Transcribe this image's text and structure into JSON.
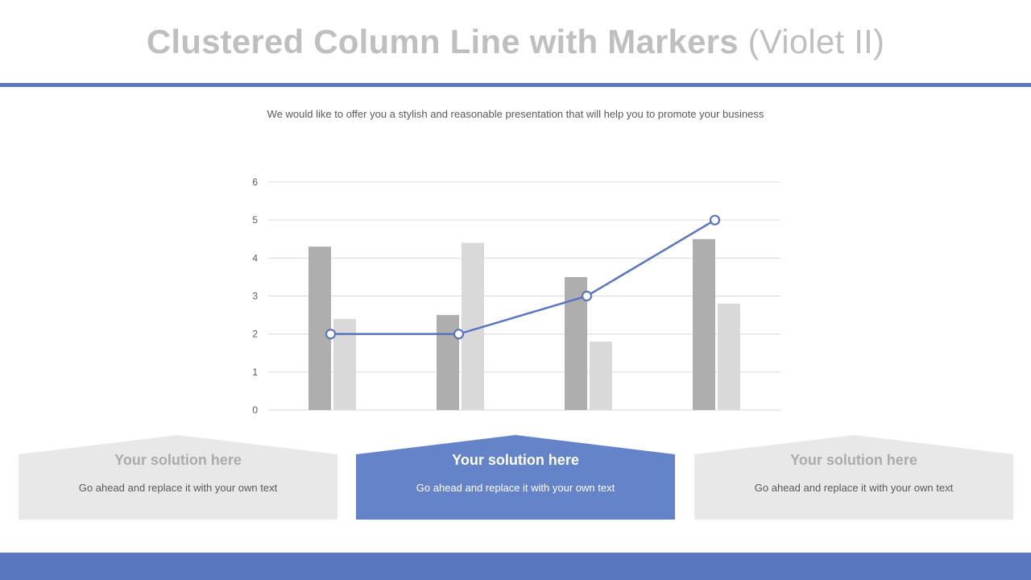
{
  "slide": {
    "title_main": "Clustered Column Line with Markers ",
    "title_suffix": "(Violet II)",
    "subtitle": "We would like to offer you a stylish and reasonable presentation that will help you to promote your business"
  },
  "chart_data": {
    "type": "bar",
    "categories": [
      "",
      "",
      "",
      ""
    ],
    "series": [
      {
        "kind": "bar",
        "values": [
          4.3,
          2.5,
          3.5,
          4.5
        ],
        "color": "#aeaeae"
      },
      {
        "kind": "bar",
        "values": [
          2.4,
          4.4,
          1.8,
          2.8
        ],
        "color": "#d9d9d9"
      },
      {
        "kind": "line",
        "values": [
          2,
          2,
          3,
          5
        ],
        "color": "#5a76bf",
        "markers": true
      }
    ],
    "ylim": [
      0,
      6
    ],
    "yticks": [
      0,
      1,
      2,
      3,
      4,
      5,
      6
    ],
    "grid": true,
    "legend": "none"
  },
  "cards": [
    {
      "heading": "Your solution  here",
      "text": "Go ahead and replace it with your own text",
      "active": false,
      "fill": "#e8e8e8"
    },
    {
      "heading": "Your solution  here",
      "text": "Go ahead and replace it with your own text",
      "active": true,
      "fill": "#6583c9"
    },
    {
      "heading": "Your solution  here",
      "text": "Go ahead and replace it with your own text",
      "active": false,
      "fill": "#e8e8e8"
    }
  ]
}
